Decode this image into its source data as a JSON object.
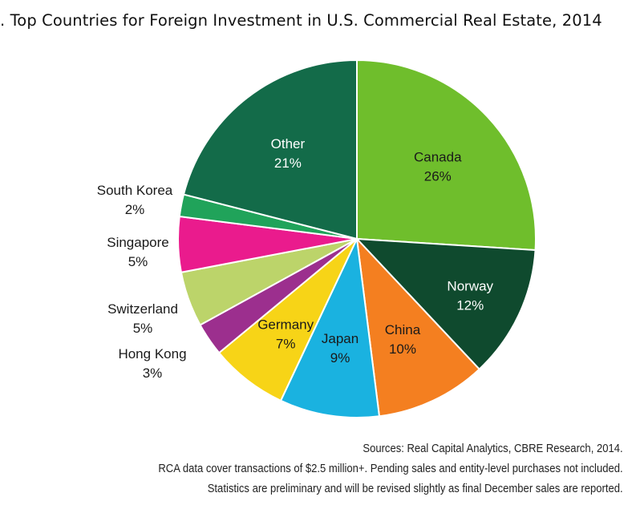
{
  "chart_data": {
    "type": "pie",
    "title": ". Top Countries for Foreign Investment in U.S. Commercial Real Estate, 2014",
    "start_angle_deg": 0,
    "direction": "clockwise",
    "slices": [
      {
        "label": "Canada",
        "value": 26,
        "value_label": "26%",
        "color": "#6fbe2c",
        "label_color": "#1a1a1a",
        "label_position": "inside"
      },
      {
        "label": "Norway",
        "value": 12,
        "value_label": "12%",
        "color": "#0f4a2e",
        "label_color": "#ffffff",
        "label_position": "inside"
      },
      {
        "label": "China",
        "value": 10,
        "value_label": "10%",
        "color": "#f47f20",
        "label_color": "#1a1a1a",
        "label_position": "inside"
      },
      {
        "label": "Japan",
        "value": 9,
        "value_label": "9%",
        "color": "#1ab2e0",
        "label_color": "#1a1a1a",
        "label_position": "inside"
      },
      {
        "label": "Germany",
        "value": 7,
        "value_label": "7%",
        "color": "#f7d417",
        "label_color": "#1a1a1a",
        "label_position": "inside"
      },
      {
        "label": "Hong Kong",
        "value": 3,
        "value_label": "3%",
        "color": "#9c2f8e",
        "label_color": "#1a1a1a",
        "label_position": "outside"
      },
      {
        "label": "Switzerland",
        "value": 5,
        "value_label": "5%",
        "color": "#bcd46a",
        "label_color": "#1a1a1a",
        "label_position": "outside"
      },
      {
        "label": "Singapore",
        "value": 5,
        "value_label": "5%",
        "color": "#ea1b8d",
        "label_color": "#1a1a1a",
        "label_position": "outside"
      },
      {
        "label": "South Korea",
        "value": 2,
        "value_label": "2%",
        "color": "#20a35a",
        "label_color": "#1a1a1a",
        "label_position": "outside"
      },
      {
        "label": "Other",
        "value": 21,
        "value_label": "21%",
        "color": "#136b49",
        "label_color": "#ffffff",
        "label_position": "inside"
      }
    ],
    "legend": "none"
  },
  "footnotes": [
    "Sources: Real Capital Analytics, CBRE Research, 2014.",
    "RCA data cover transactions of $2.5 million+. Pending sales and entity-level purchases not included.",
    "Statistics are preliminary and will be revised slightly as final December sales are reported."
  ]
}
